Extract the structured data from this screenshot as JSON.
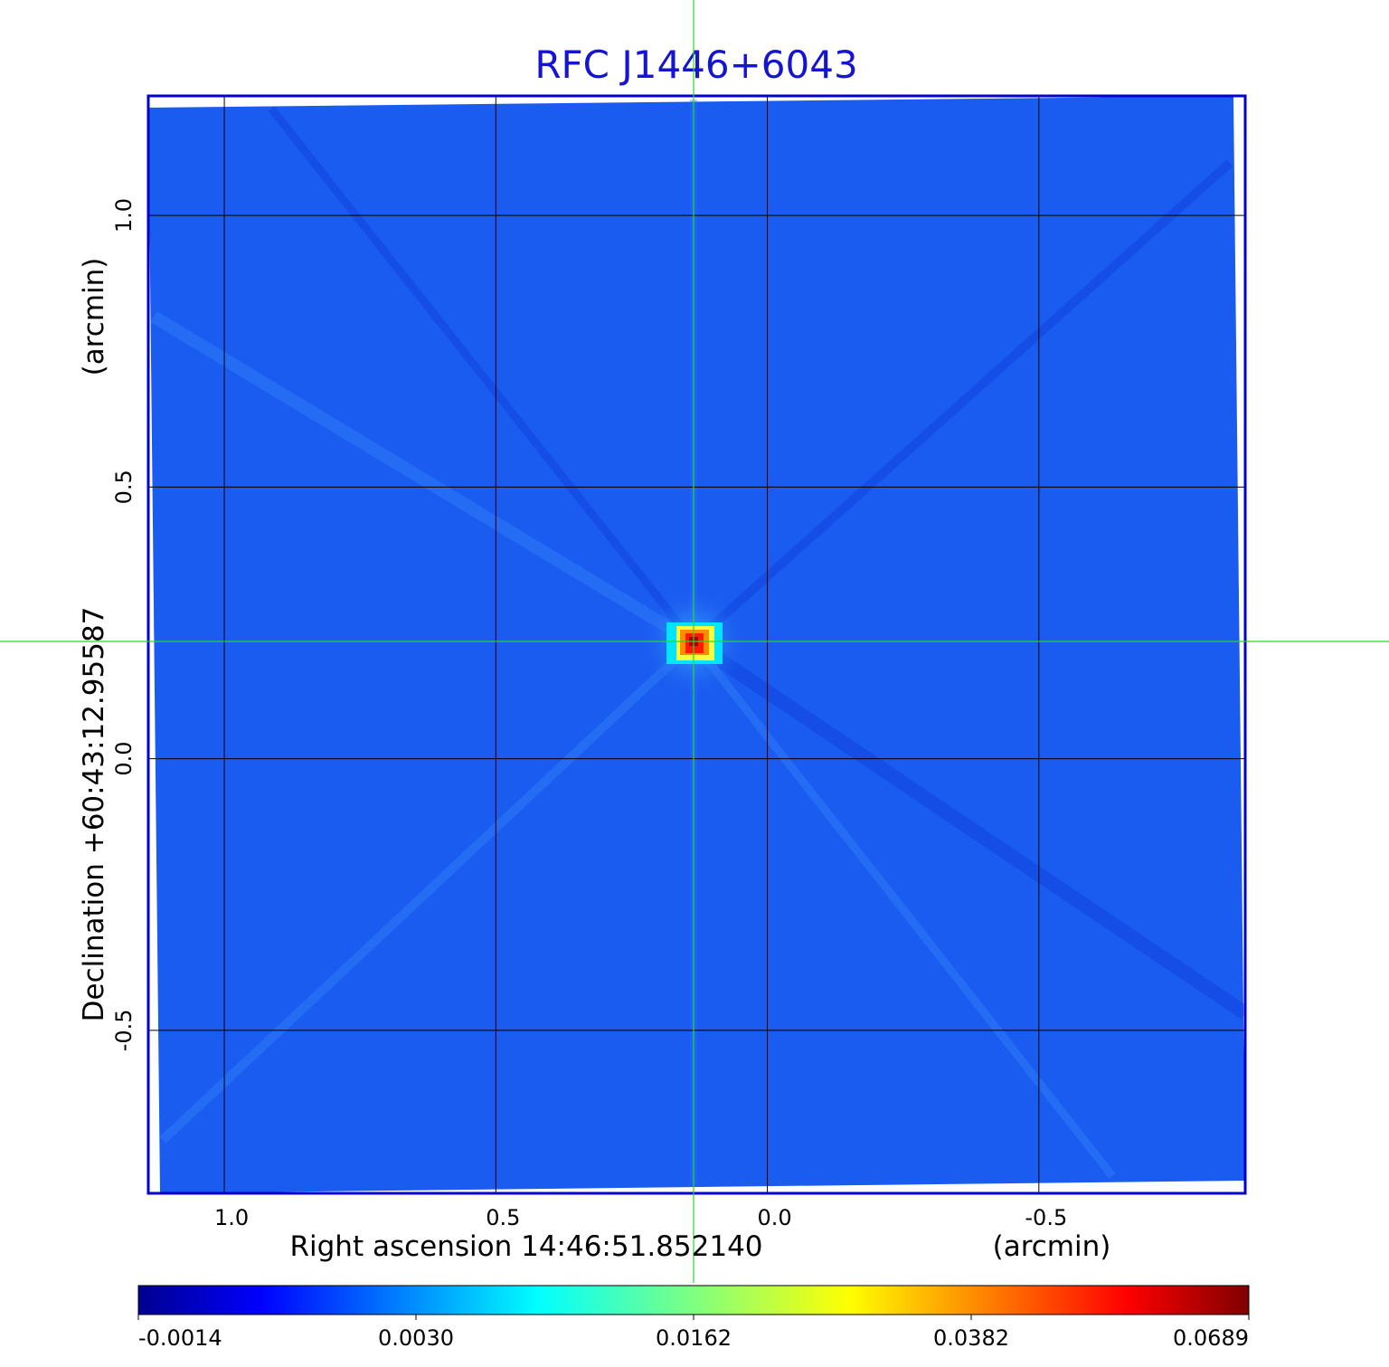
{
  "title": "RFC J1446+6043",
  "colors": {
    "title": "#1414d2",
    "frame": "#0000cc",
    "grid": "#000000",
    "crosshair": "#22dd22",
    "background_field": "#1a5cf0",
    "source_peak": "#c80000"
  },
  "image": {
    "type": "radio-map",
    "colormap": "jet",
    "source_position_arcmin": {
      "ra_offset": 0.14,
      "dec_offset": 0.22
    }
  },
  "x_axis": {
    "label": "Right ascension  14:46:51.852140",
    "unit": "(arcmin)",
    "ticks": [
      "1.0",
      "0.5",
      "0.0",
      "-0.5"
    ],
    "tick_values": [
      1.0,
      0.5,
      0.0,
      -0.5
    ],
    "range": [
      1.14,
      -0.88
    ],
    "inverted": true
  },
  "y_axis": {
    "label": "Declination  +60:43:12.95587",
    "unit": "(arcmin)",
    "ticks": [
      "1.0",
      "0.5",
      "0.0",
      "-0.5"
    ],
    "tick_values": [
      1.0,
      0.5,
      0.0,
      -0.5
    ],
    "range": [
      -0.8,
      1.22
    ]
  },
  "colorbar": {
    "colormap": "jet",
    "tick_labels": [
      "-0.0014",
      "0.0030",
      "0.0162",
      "0.0382",
      "0.0689"
    ],
    "tick_values": [
      -0.0014,
      0.003,
      0.0162,
      0.0382,
      0.0689
    ]
  }
}
